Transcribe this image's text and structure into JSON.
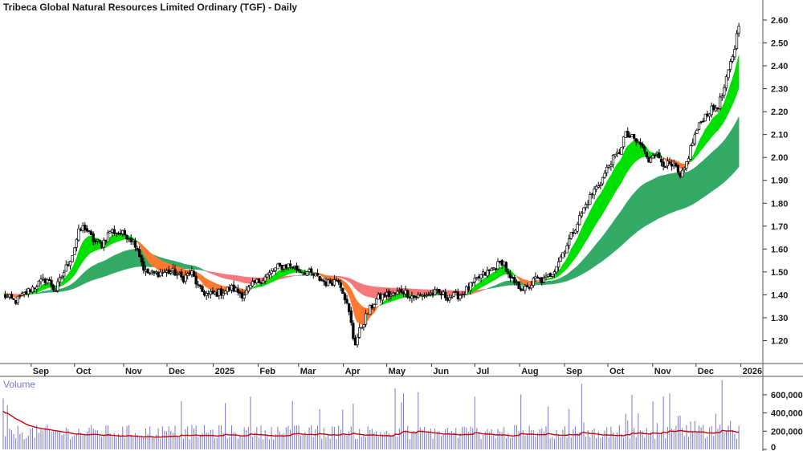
{
  "chart_data": {
    "type": "candlestick",
    "title": "Tribeca Global Natural Resources Limited Ordinary (TGF) - Daily",
    "price_axis": {
      "ticks": [
        "1.20",
        "1.30",
        "1.40",
        "1.50",
        "1.60",
        "1.70",
        "1.80",
        "1.90",
        "2.00",
        "2.10",
        "2.20",
        "2.30",
        "2.40",
        "2.50",
        "2.60"
      ],
      "range": [
        1.1,
        2.67
      ]
    },
    "time_axis": {
      "labels": [
        "Sep",
        "Oct",
        "Nov",
        "Dec",
        "2025",
        "Feb",
        "Mar",
        "Apr",
        "May",
        "Jun",
        "Jul",
        "Aug",
        "Sep",
        "Oct",
        "Nov",
        "Dec",
        "2026"
      ],
      "day_range": [
        0,
        510
      ],
      "label_days": [
        26,
        56,
        90,
        120,
        152,
        183,
        211,
        242,
        272,
        303,
        333,
        364,
        395,
        425,
        456,
        486,
        517
      ]
    },
    "price_path": [
      [
        0,
        1.4
      ],
      [
        8,
        1.37
      ],
      [
        16,
        1.41
      ],
      [
        22,
        1.44
      ],
      [
        30,
        1.47
      ],
      [
        36,
        1.42
      ],
      [
        42,
        1.5
      ],
      [
        48,
        1.58
      ],
      [
        52,
        1.67
      ],
      [
        56,
        1.7
      ],
      [
        62,
        1.64
      ],
      [
        68,
        1.62
      ],
      [
        74,
        1.68
      ],
      [
        80,
        1.67
      ],
      [
        86,
        1.66
      ],
      [
        92,
        1.62
      ],
      [
        98,
        1.5
      ],
      [
        104,
        1.49
      ],
      [
        110,
        1.5
      ],
      [
        118,
        1.5
      ],
      [
        124,
        1.47
      ],
      [
        130,
        1.5
      ],
      [
        136,
        1.42
      ],
      [
        142,
        1.4
      ],
      [
        150,
        1.41
      ],
      [
        158,
        1.43
      ],
      [
        166,
        1.4
      ],
      [
        174,
        1.45
      ],
      [
        182,
        1.48
      ],
      [
        190,
        1.52
      ],
      [
        198,
        1.53
      ],
      [
        204,
        1.51
      ],
      [
        210,
        1.5
      ],
      [
        216,
        1.48
      ],
      [
        224,
        1.45
      ],
      [
        232,
        1.47
      ],
      [
        236,
        1.4
      ],
      [
        240,
        1.3
      ],
      [
        243,
        1.18
      ],
      [
        247,
        1.25
      ],
      [
        252,
        1.32
      ],
      [
        258,
        1.38
      ],
      [
        264,
        1.4
      ],
      [
        270,
        1.4
      ],
      [
        276,
        1.42
      ],
      [
        284,
        1.39
      ],
      [
        292,
        1.4
      ],
      [
        300,
        1.41
      ],
      [
        308,
        1.39
      ],
      [
        316,
        1.4
      ],
      [
        322,
        1.43
      ],
      [
        330,
        1.48
      ],
      [
        336,
        1.5
      ],
      [
        342,
        1.53
      ],
      [
        346,
        1.55
      ],
      [
        350,
        1.47
      ],
      [
        356,
        1.44
      ],
      [
        362,
        1.42
      ],
      [
        368,
        1.47
      ],
      [
        374,
        1.46
      ],
      [
        380,
        1.5
      ],
      [
        386,
        1.57
      ],
      [
        390,
        1.62
      ],
      [
        396,
        1.7
      ],
      [
        402,
        1.78
      ],
      [
        408,
        1.85
      ],
      [
        414,
        1.9
      ],
      [
        420,
        1.98
      ],
      [
        426,
        2.02
      ],
      [
        430,
        2.1
      ],
      [
        436,
        2.08
      ],
      [
        442,
        2.05
      ],
      [
        446,
        1.98
      ],
      [
        450,
        2.03
      ],
      [
        456,
        1.98
      ],
      [
        462,
        1.96
      ],
      [
        466,
        1.95
      ],
      [
        468,
        1.9
      ],
      [
        472,
        1.96
      ],
      [
        476,
        2.05
      ],
      [
        480,
        2.12
      ],
      [
        484,
        2.17
      ],
      [
        488,
        2.2
      ],
      [
        494,
        2.22
      ],
      [
        498,
        2.28
      ],
      [
        502,
        2.38
      ],
      [
        506,
        2.48
      ],
      [
        508,
        2.55
      ],
      [
        510,
        2.63
      ]
    ],
    "moving_averages": [
      {
        "period": "short",
        "trend": "up",
        "color": "#00e000"
      },
      {
        "period": "short",
        "trend": "down",
        "color": "#ff7a30"
      },
      {
        "period": "long",
        "trend": "up",
        "color": "#33aa66"
      },
      {
        "period": "long",
        "trend": "down",
        "color": "#f5797b"
      },
      {
        "period": "long",
        "trend": "fading",
        "color": "#f8b4b8"
      }
    ],
    "volume": {
      "title": "Volume",
      "ticks": [
        "0",
        "200,000",
        "400,000",
        "600,000"
      ],
      "range": [
        0,
        740000
      ],
      "color": "#7777cc",
      "average_color": "#cc0000"
    }
  }
}
